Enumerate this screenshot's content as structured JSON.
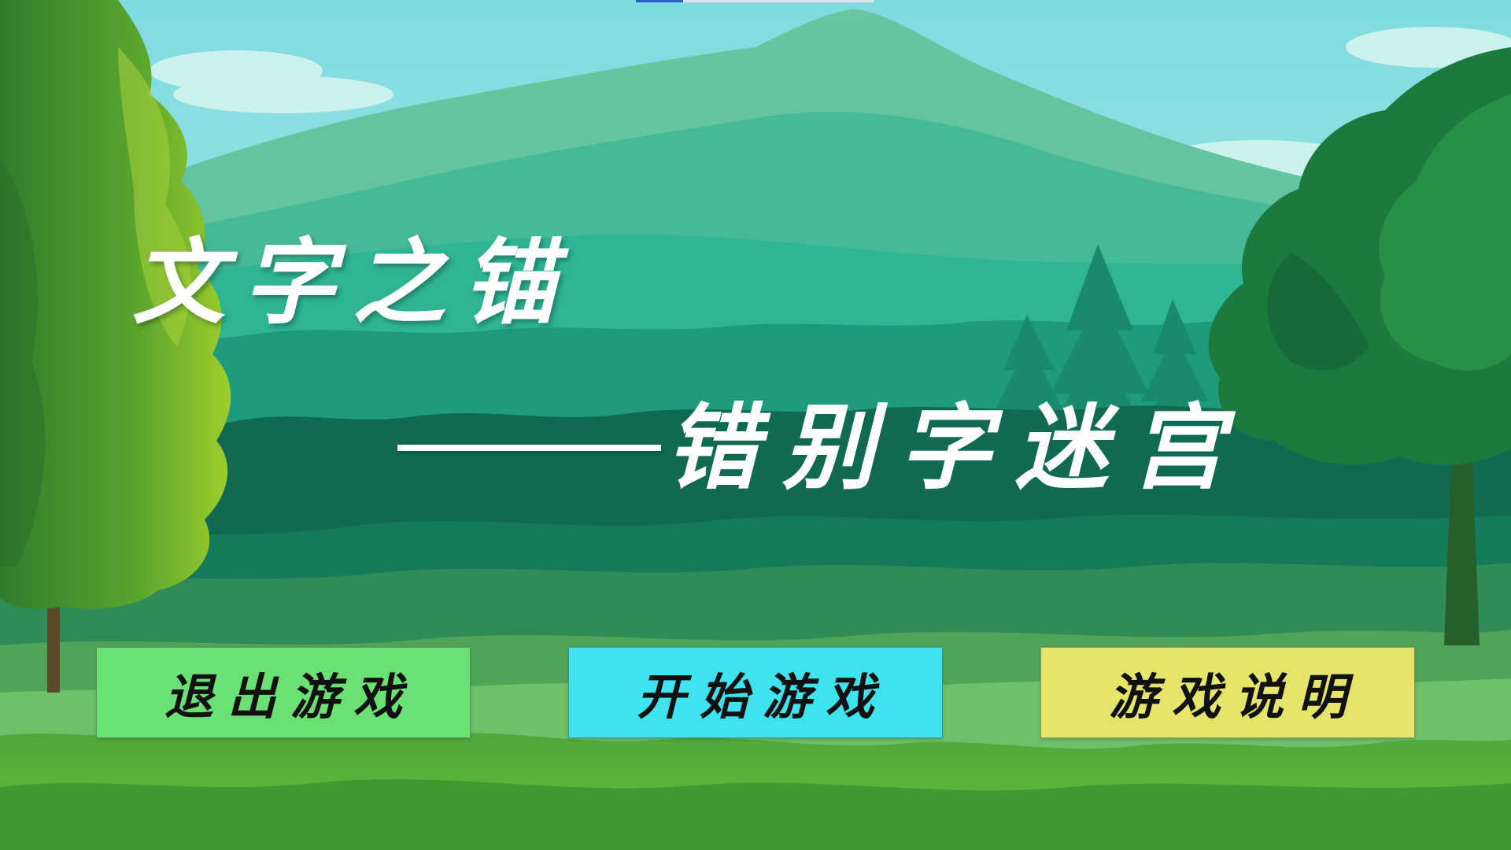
{
  "title": {
    "main": "文字之锚",
    "subtitle": "错别字迷宫"
  },
  "buttons": {
    "exit": {
      "label": "退出游戏",
      "color": "#6be074"
    },
    "start": {
      "label": "开始游戏",
      "color": "#3fe3ee"
    },
    "help": {
      "label": "游戏说明",
      "color": "#e4e56a"
    }
  },
  "palette": {
    "sky_top": "#7fdbe0",
    "sky_bottom": "#bff0ea",
    "mountain_far": "#6cc9a6",
    "mountain_mid": "#3fb894",
    "hill_dark": "#0e6b52",
    "meadow": "#3d9b4a",
    "foreground": "#5cb33a"
  }
}
